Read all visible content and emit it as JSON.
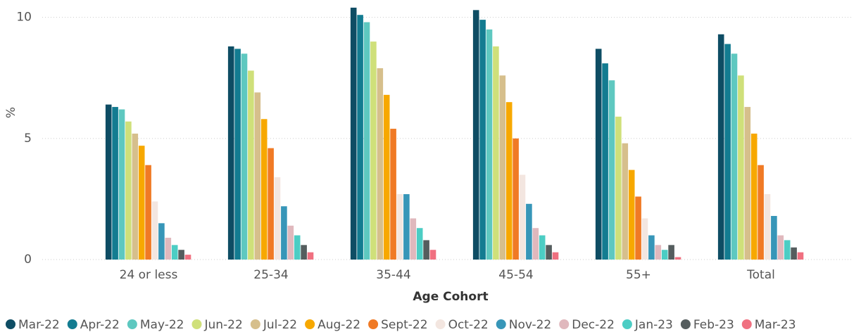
{
  "chart_data": {
    "type": "bar",
    "x_label": "Age Cohort",
    "y_label": "%",
    "categories": [
      "24 or less",
      "25-34",
      "35-44",
      "45-54",
      "55+",
      "Total"
    ],
    "ylim": [
      0,
      10.6
    ],
    "yticks": [
      0,
      5,
      10
    ],
    "grid": true,
    "legend": "bottom",
    "series": [
      {
        "name": "Mar-22",
        "color": "#0e4d64",
        "values": [
          6.4,
          8.8,
          10.4,
          10.3,
          8.7,
          9.3
        ]
      },
      {
        "name": "Apr-22",
        "color": "#137c91",
        "values": [
          6.3,
          8.7,
          10.1,
          9.9,
          8.1,
          8.9
        ]
      },
      {
        "name": "May-22",
        "color": "#5ec8c0",
        "values": [
          6.2,
          8.5,
          9.8,
          9.5,
          7.4,
          8.5
        ]
      },
      {
        "name": "Jun-22",
        "color": "#cfe07a",
        "values": [
          5.7,
          7.8,
          9.0,
          8.8,
          5.9,
          7.6
        ]
      },
      {
        "name": "Jul-22",
        "color": "#d6bf8c",
        "values": [
          5.2,
          6.9,
          7.9,
          7.6,
          4.8,
          6.3
        ]
      },
      {
        "name": "Aug-22",
        "color": "#f7a800",
        "values": [
          4.7,
          5.8,
          6.8,
          6.5,
          3.7,
          5.2
        ]
      },
      {
        "name": "Sept-22",
        "color": "#f07a25",
        "values": [
          3.9,
          4.6,
          5.4,
          5.0,
          2.6,
          3.9
        ]
      },
      {
        "name": "Oct-22",
        "color": "#f3e6e0",
        "values": [
          2.4,
          3.4,
          2.7,
          3.5,
          1.7,
          2.7
        ]
      },
      {
        "name": "Nov-22",
        "color": "#3796b8",
        "values": [
          1.5,
          2.2,
          2.7,
          2.3,
          1.0,
          1.8
        ]
      },
      {
        "name": "Dec-22",
        "color": "#e0b8bd",
        "values": [
          0.9,
          1.4,
          1.7,
          1.3,
          0.6,
          1.0
        ]
      },
      {
        "name": "Jan-23",
        "color": "#4ccdc4",
        "values": [
          0.6,
          1.0,
          1.3,
          1.0,
          0.4,
          0.8
        ]
      },
      {
        "name": "Feb-23",
        "color": "#555d5e",
        "values": [
          0.4,
          0.6,
          0.8,
          0.6,
          0.6,
          0.5
        ]
      },
      {
        "name": "Mar-23",
        "color": "#f07080",
        "values": [
          0.2,
          0.3,
          0.4,
          0.3,
          0.1,
          0.3
        ]
      }
    ]
  }
}
